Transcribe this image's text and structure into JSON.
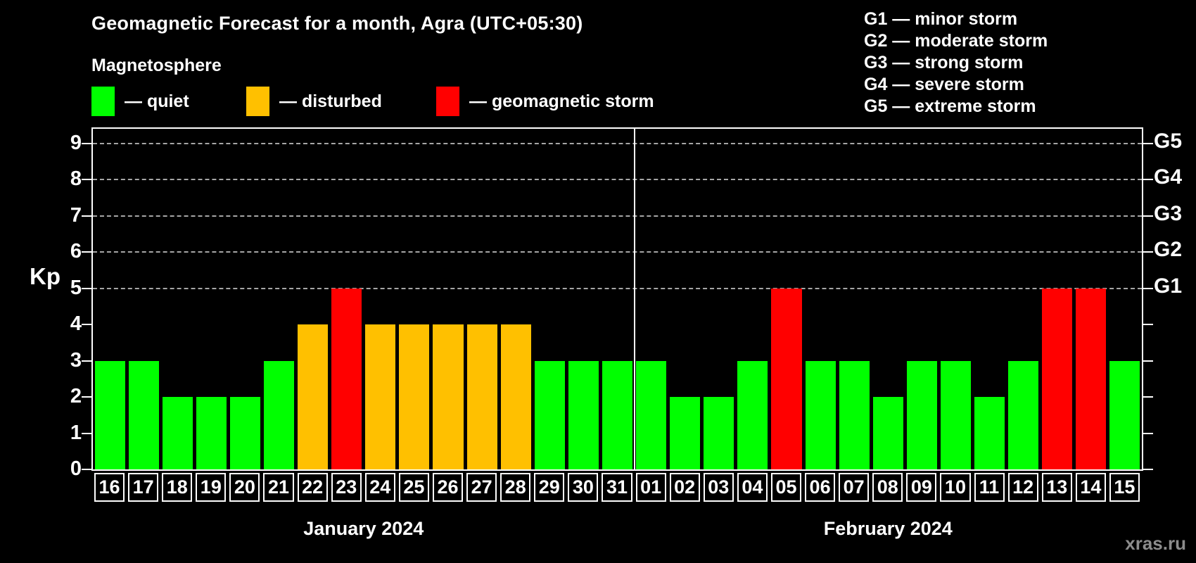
{
  "header": {
    "title": "Geomagnetic Forecast for a month, Agra (UTC+05:30)"
  },
  "magnetosphere_legend": {
    "title": "Magnetosphere",
    "items": [
      {
        "key": "quiet",
        "label": "— quiet",
        "color": "#00ff00"
      },
      {
        "key": "disturbed",
        "label": "— disturbed",
        "color": "#ffc000"
      },
      {
        "key": "storm",
        "label": "— geomagnetic storm",
        "color": "#ff0000"
      }
    ]
  },
  "g_scale_legend": {
    "items": [
      "G1 — minor storm",
      "G2 — moderate storm",
      "G3 — strong storm",
      "G4 — severe storm",
      "G5 — extreme storm"
    ]
  },
  "axes": {
    "y_label": "Kp",
    "y_ticks": [
      0,
      1,
      2,
      3,
      4,
      5,
      6,
      7,
      8,
      9
    ],
    "right_g_labels": [
      {
        "label": "G5",
        "kp": 9
      },
      {
        "label": "G4",
        "kp": 8
      },
      {
        "label": "G3",
        "kp": 7
      },
      {
        "label": "G2",
        "kp": 6
      },
      {
        "label": "G1",
        "kp": 5
      }
    ]
  },
  "watermark": {
    "label": "xras.ru"
  },
  "chart_data": {
    "type": "bar",
    "title": "Geomagnetic Forecast for a month, Agra (UTC+05:30)",
    "ylabel": "Kp",
    "ylim": [
      0,
      9.4
    ],
    "grid_dashed_at_kp": [
      5,
      6,
      7,
      8,
      9
    ],
    "legend_position": "top-left",
    "months": [
      {
        "label": "January 2024",
        "days": [
          {
            "day": "16",
            "kp": 3,
            "status": "quiet"
          },
          {
            "day": "17",
            "kp": 3,
            "status": "quiet"
          },
          {
            "day": "18",
            "kp": 2,
            "status": "quiet"
          },
          {
            "day": "19",
            "kp": 2,
            "status": "quiet"
          },
          {
            "day": "20",
            "kp": 2,
            "status": "quiet"
          },
          {
            "day": "21",
            "kp": 3,
            "status": "quiet"
          },
          {
            "day": "22",
            "kp": 4,
            "status": "disturbed"
          },
          {
            "day": "23",
            "kp": 5,
            "status": "storm"
          },
          {
            "day": "24",
            "kp": 4,
            "status": "disturbed"
          },
          {
            "day": "25",
            "kp": 4,
            "status": "disturbed"
          },
          {
            "day": "26",
            "kp": 4,
            "status": "disturbed"
          },
          {
            "day": "27",
            "kp": 4,
            "status": "disturbed"
          },
          {
            "day": "28",
            "kp": 4,
            "status": "disturbed"
          },
          {
            "day": "29",
            "kp": 3,
            "status": "quiet"
          },
          {
            "day": "30",
            "kp": 3,
            "status": "quiet"
          },
          {
            "day": "31",
            "kp": 3,
            "status": "quiet"
          }
        ]
      },
      {
        "label": "February 2024",
        "days": [
          {
            "day": "01",
            "kp": 3,
            "status": "quiet"
          },
          {
            "day": "02",
            "kp": 2,
            "status": "quiet"
          },
          {
            "day": "03",
            "kp": 2,
            "status": "quiet"
          },
          {
            "day": "04",
            "kp": 3,
            "status": "quiet"
          },
          {
            "day": "05",
            "kp": 5,
            "status": "storm"
          },
          {
            "day": "06",
            "kp": 3,
            "status": "quiet"
          },
          {
            "day": "07",
            "kp": 3,
            "status": "quiet"
          },
          {
            "day": "08",
            "kp": 2,
            "status": "quiet"
          },
          {
            "day": "09",
            "kp": 3,
            "status": "quiet"
          },
          {
            "day": "10",
            "kp": 3,
            "status": "quiet"
          },
          {
            "day": "11",
            "kp": 2,
            "status": "quiet"
          },
          {
            "day": "12",
            "kp": 3,
            "status": "quiet"
          },
          {
            "day": "13",
            "kp": 5,
            "status": "storm"
          },
          {
            "day": "14",
            "kp": 5,
            "status": "storm"
          },
          {
            "day": "15",
            "kp": 3,
            "status": "quiet"
          }
        ]
      }
    ]
  }
}
